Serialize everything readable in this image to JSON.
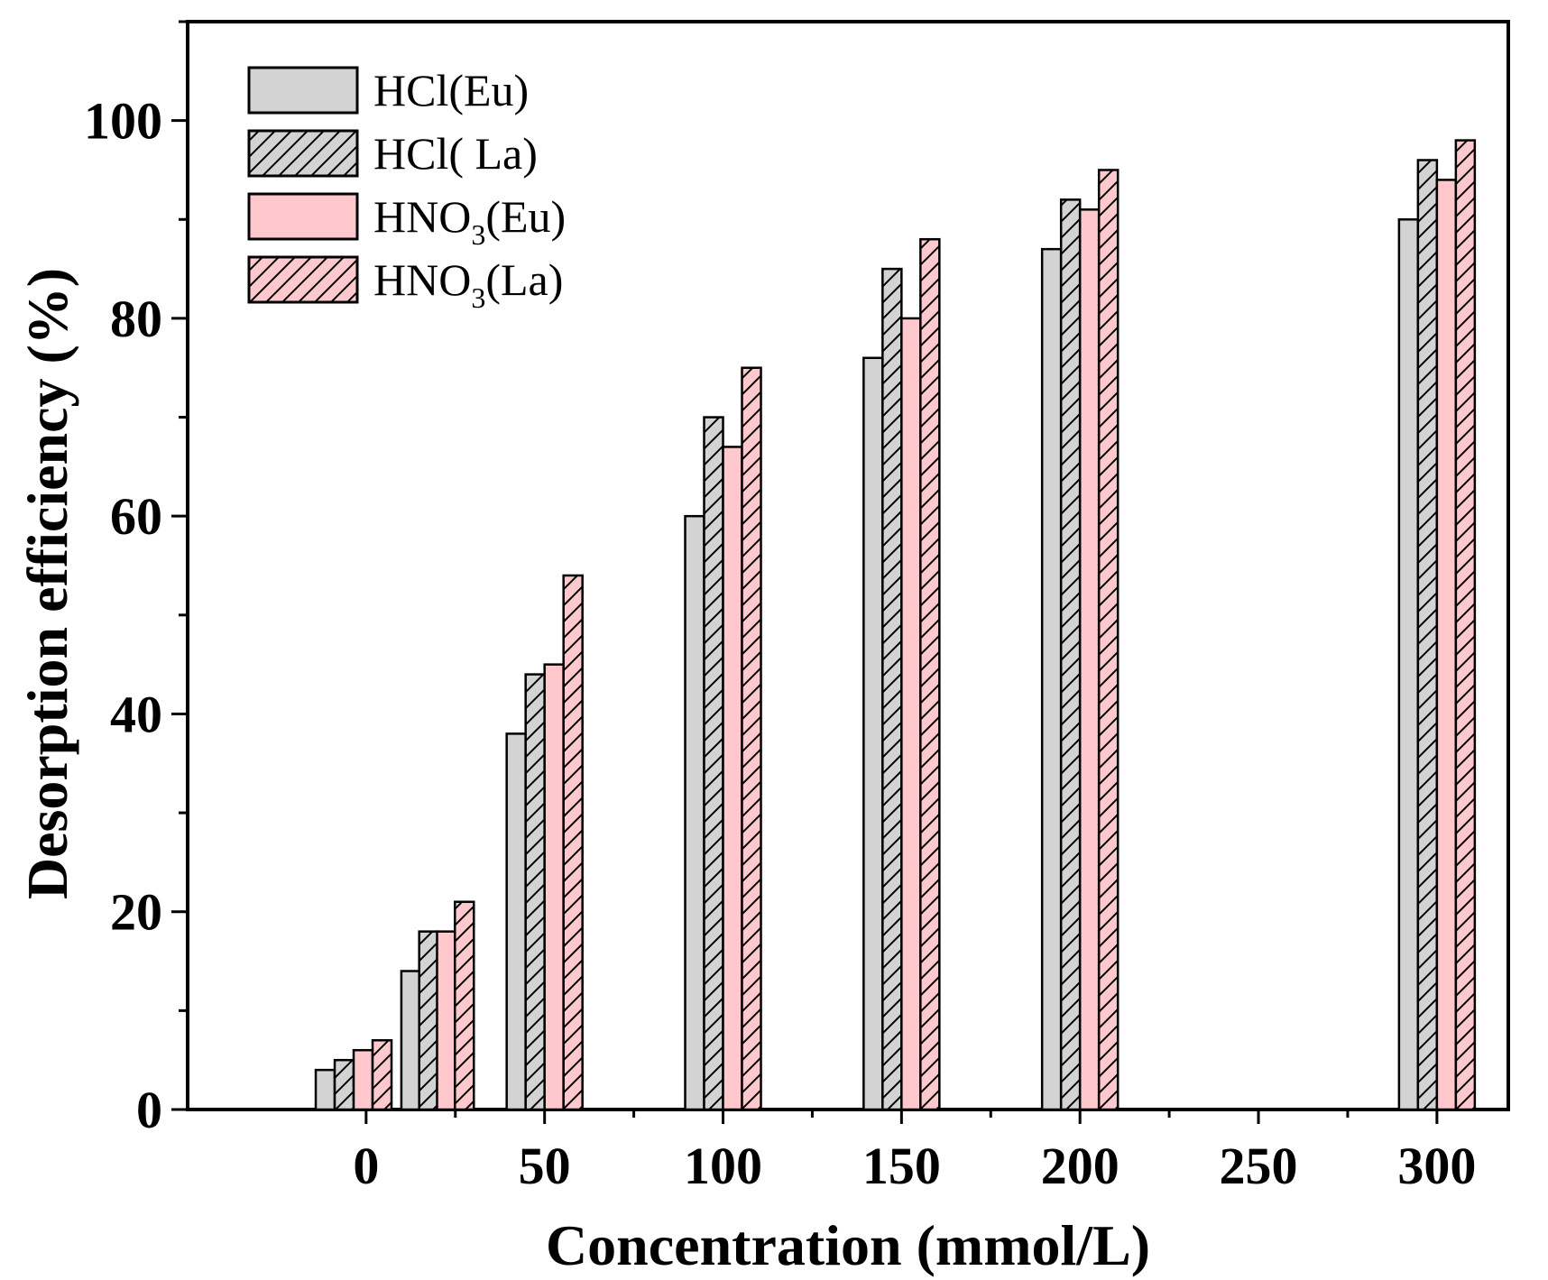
{
  "chart_data": {
    "type": "bar",
    "title": "",
    "xlabel": "Concentration (mmol/L)",
    "ylabel": "Desorption efficiency (%)",
    "xlim": [
      -50,
      320
    ],
    "ylim": [
      0,
      110
    ],
    "xticks": [
      0,
      50,
      100,
      150,
      200,
      250,
      300
    ],
    "yticks": [
      0,
      20,
      40,
      60,
      80,
      100
    ],
    "x": [
      5,
      50,
      100,
      150,
      200,
      300
    ],
    "series": [
      {
        "name": "HCl(Eu)",
        "label_main": "HCl(Eu)",
        "label_sub": "",
        "label_tail": "",
        "fill": "#d3d3d3",
        "hatch": false,
        "values": [
          4,
          38,
          60,
          76,
          87,
          90
        ]
      },
      {
        "name": "HCl( La)",
        "label_main": "HCl( La)",
        "label_sub": "",
        "label_tail": "",
        "fill": "#d3d3d3",
        "hatch": true,
        "values": [
          5,
          44,
          70,
          85,
          92,
          96
        ]
      },
      {
        "name": "HNO3(Eu)",
        "label_main": "HNO",
        "label_sub": "3",
        "label_tail": "(Eu)",
        "fill": "#ffc8cc",
        "hatch": false,
        "values": [
          6,
          45,
          67,
          80,
          91,
          94
        ]
      },
      {
        "name": "HNO3(La)",
        "label_main": "HNO",
        "label_sub": "3",
        "label_tail": "(La)",
        "fill": "#ffc8cc",
        "hatch": true,
        "values": [
          7,
          54,
          75,
          88,
          95,
          98
        ]
      }
    ],
    "extra_bars": [
      {
        "series": "HCl(Eu)",
        "x": 10,
        "value": 14
      },
      {
        "series": "HCl( La)",
        "x": 15,
        "value": 18
      },
      {
        "series": "HNO3(Eu)",
        "x": 20,
        "value": 18
      },
      {
        "series": "HNO3(La)",
        "x": 25,
        "value": 21
      }
    ],
    "legend_position": "top-left",
    "grid": false
  }
}
